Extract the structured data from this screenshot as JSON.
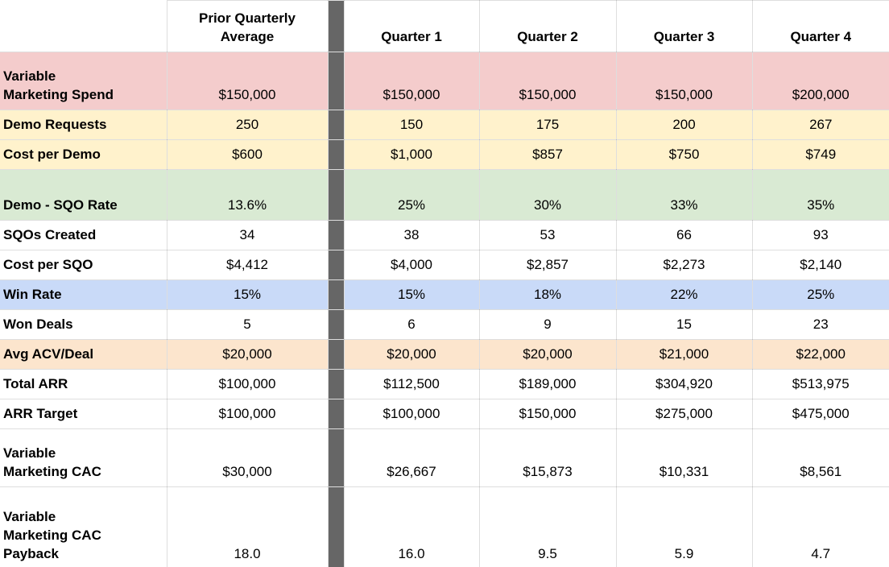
{
  "table": {
    "headers": {
      "row_label": "",
      "prior": "Prior Quarterly Average",
      "quarters": [
        "Quarter 1",
        "Quarter 2",
        "Quarter 3",
        "Quarter 4"
      ]
    },
    "rows": [
      {
        "label": "Variable Marketing Spend",
        "fill": "red",
        "values": [
          "$150,000",
          "$150,000",
          "$150,000",
          "$150,000",
          "$200,000"
        ]
      },
      {
        "label": "Demo Requests",
        "fill": "yellow",
        "values": [
          "250",
          "150",
          "175",
          "200",
          "267"
        ]
      },
      {
        "label": "Cost per Demo",
        "fill": "yellow",
        "values": [
          "$600",
          "$1,000",
          "$857",
          "$750",
          "$749"
        ]
      },
      {
        "label": "Demo - SQO Rate",
        "fill": "green",
        "values": [
          "13.6%",
          "25%",
          "30%",
          "33%",
          "35%"
        ]
      },
      {
        "label": "SQOs Created",
        "fill": "white",
        "values": [
          "34",
          "38",
          "53",
          "66",
          "93"
        ]
      },
      {
        "label": "Cost per SQO",
        "fill": "white",
        "values": [
          "$4,412",
          "$4,000",
          "$2,857",
          "$2,273",
          "$2,140"
        ]
      },
      {
        "label": "Win Rate",
        "fill": "blue",
        "values": [
          "15%",
          "15%",
          "18%",
          "22%",
          "25%"
        ]
      },
      {
        "label": "Won Deals",
        "fill": "white",
        "values": [
          "5",
          "6",
          "9",
          "15",
          "23"
        ]
      },
      {
        "label": "Avg ACV/Deal",
        "fill": "orange",
        "values": [
          "$20,000",
          "$20,000",
          "$20,000",
          "$21,000",
          "$22,000"
        ]
      },
      {
        "label": "Total ARR",
        "fill": "white",
        "values": [
          "$100,000",
          "$112,500",
          "$189,000",
          "$304,920",
          "$513,975"
        ]
      },
      {
        "label": "ARR Target",
        "fill": "white",
        "values": [
          "$100,000",
          "$100,000",
          "$150,000",
          "$275,000",
          "$475,000"
        ]
      },
      {
        "label": "Variable Marketing CAC",
        "fill": "white",
        "values": [
          "$30,000",
          "$26,667",
          "$15,873",
          "$10,331",
          "$8,561"
        ]
      },
      {
        "label": "Variable Marketing CAC Payback",
        "fill": "white",
        "values": [
          "18.0",
          "16.0",
          "9.5",
          "5.9",
          "4.7"
        ]
      }
    ],
    "colors": {
      "red": "#f4cccc",
      "yellow": "#fff2cc",
      "green": "#d9ead3",
      "blue": "#c9daf8",
      "orange": "#fce5cd",
      "white": "#ffffff",
      "divider": "#666666"
    }
  }
}
